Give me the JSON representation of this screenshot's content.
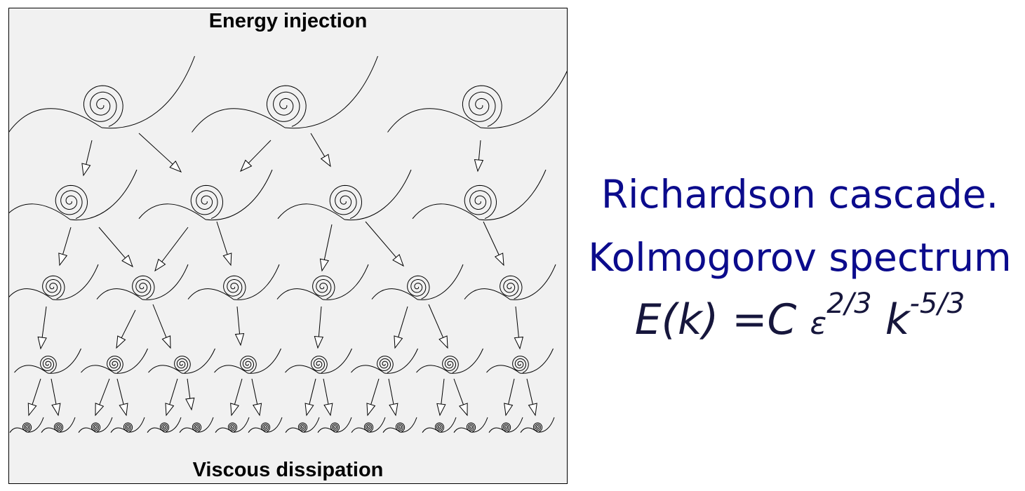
{
  "diagram": {
    "top_label": "Energy injection",
    "bottom_label": "Viscous dissipation",
    "line_color": "#000000",
    "panel_color": "#f1f1f1"
  },
  "caption": {
    "line1": "Richardson cascade.",
    "line2": "Kolmogorov spectrum",
    "color": "#0b0b8c"
  },
  "formula": {
    "lhs": "E(k) =",
    "const": "C",
    "eps": "ε",
    "eps_exp": "2/3",
    "k": "k",
    "k_exp": "-5/3"
  }
}
